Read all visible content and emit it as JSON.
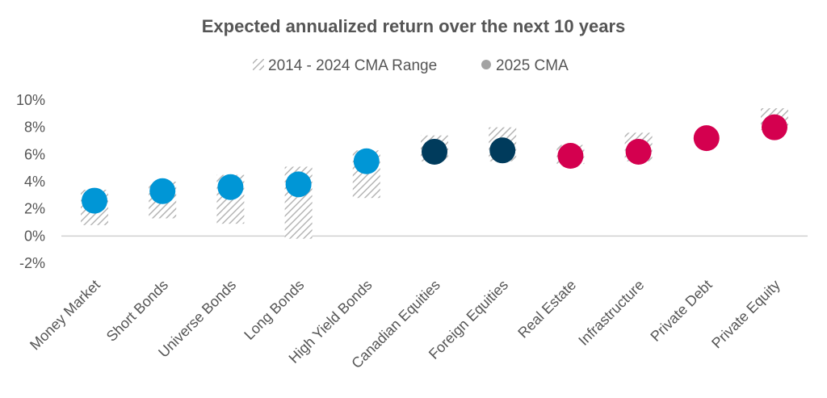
{
  "chart_data": {
    "type": "scatter",
    "title": "Expected annualized return over the next 10 years",
    "legend": {
      "range_label": "2014 - 2024 CMA Range",
      "point_label": "2025 CMA",
      "position": "top-center"
    },
    "y_ticks": [
      "10%",
      "8%",
      "6%",
      "4%",
      "2%",
      "0%",
      "-2%"
    ],
    "ylim": [
      -2,
      10
    ],
    "categories": [
      "Money Market",
      "Short Bonds",
      "Universe Bonds",
      "Long Bonds",
      "High Yield Bonds",
      "Canadian Equities",
      "Foreign Equities",
      "Real Estate",
      "Infrastructure",
      "Private Debt",
      "Private Equity"
    ],
    "range_low": [
      0.8,
      1.3,
      0.9,
      -0.2,
      2.8,
      5.5,
      5.5,
      5.3,
      5.5,
      null,
      7.8
    ],
    "range_high": [
      3.4,
      4.0,
      4.5,
      5.1,
      6.3,
      7.4,
      8.0,
      6.7,
      7.6,
      null,
      9.4
    ],
    "cma_2025": [
      2.6,
      3.3,
      3.6,
      3.8,
      5.5,
      6.2,
      6.3,
      5.9,
      6.2,
      7.2,
      8.0
    ],
    "point_colors": [
      "#0096d6",
      "#0096d6",
      "#0096d6",
      "#0096d6",
      "#0096d6",
      "#003b5c",
      "#003b5c",
      "#d4004f",
      "#d4004f",
      "#d4004f",
      "#d4004f"
    ],
    "colors": {
      "range": "#b5b5b5",
      "legend_dot": "#a3a3a3",
      "axis": "#d0d0d0",
      "text": "#555555"
    }
  }
}
